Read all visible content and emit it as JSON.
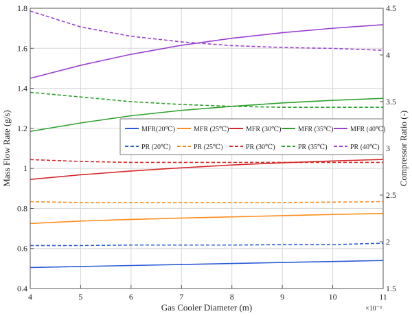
{
  "chart_data": {
    "type": "line",
    "title": "",
    "xlabel": "Gas Cooler Diameter (m)",
    "x_exponent_label": "×10⁻³",
    "ylabel_left": "Mass Flow Rate (g/s)",
    "ylabel_right": "Compressor Ratio (-)",
    "x_ticks": [
      4,
      5,
      6,
      7,
      8,
      9,
      10,
      11
    ],
    "y_left_ticks": [
      "0.4",
      "0.6",
      "0.8",
      "1",
      "1.2",
      "1.4",
      "1.6",
      "1.8"
    ],
    "y_right_ticks": [
      "1.5",
      "2",
      "2.5",
      "3",
      "3.5",
      "4",
      "4.5"
    ],
    "xlim": [
      4,
      11
    ],
    "ylim_left": [
      0.4,
      1.8
    ],
    "ylim_right": [
      1.5,
      4.5
    ],
    "grid": true,
    "legend_position": "center-right",
    "x": [
      4,
      5,
      6,
      7,
      8,
      9,
      10,
      11
    ],
    "series": [
      {
        "name": "MFR(20℃)",
        "axis": "left",
        "style": "solid",
        "color": "#2a5bd7",
        "values": [
          0.505,
          0.51,
          0.515,
          0.52,
          0.525,
          0.53,
          0.535,
          0.54
        ]
      },
      {
        "name": "MFR (25℃)",
        "axis": "left",
        "style": "solid",
        "color": "#ff8c1a",
        "values": [
          0.725,
          0.737,
          0.745,
          0.752,
          0.758,
          0.764,
          0.77,
          0.775
        ]
      },
      {
        "name": "MFR (30℃)",
        "axis": "left",
        "style": "solid",
        "color": "#d62728",
        "values": [
          0.945,
          0.968,
          0.987,
          1.003,
          1.017,
          1.028,
          1.037,
          1.045
        ]
      },
      {
        "name": "MFR (35℃)",
        "axis": "left",
        "style": "solid",
        "color": "#2ca02c",
        "values": [
          1.185,
          1.227,
          1.263,
          1.29,
          1.31,
          1.327,
          1.34,
          1.35
        ]
      },
      {
        "name": "MFR (40℃)",
        "axis": "left",
        "style": "solid",
        "color": "#9b3fcf",
        "values": [
          1.45,
          1.515,
          1.57,
          1.615,
          1.65,
          1.678,
          1.7,
          1.718
        ]
      },
      {
        "name": "PR (20℃)",
        "axis": "right",
        "style": "dashed",
        "color": "#2a5bd7",
        "values": [
          1.96,
          1.96,
          1.965,
          1.965,
          1.965,
          1.97,
          1.97,
          1.985
        ]
      },
      {
        "name": "PR (25℃)",
        "axis": "right",
        "style": "dashed",
        "color": "#ff8c1a",
        "values": [
          2.43,
          2.42,
          2.42,
          2.42,
          2.42,
          2.42,
          2.425,
          2.43
        ]
      },
      {
        "name": "PR (30℃)",
        "axis": "right",
        "style": "dashed",
        "color": "#d62728",
        "values": [
          2.88,
          2.86,
          2.85,
          2.85,
          2.85,
          2.85,
          2.85,
          2.85
        ]
      },
      {
        "name": "PR (35℃)",
        "axis": "right",
        "style": "dashed",
        "color": "#2ca02c",
        "values": [
          3.6,
          3.55,
          3.5,
          3.47,
          3.45,
          3.44,
          3.44,
          3.44
        ]
      },
      {
        "name": "PR (40℃)",
        "axis": "right",
        "style": "dashed",
        "color": "#9b3fcf",
        "values": [
          4.47,
          4.3,
          4.2,
          4.14,
          4.1,
          4.08,
          4.07,
          4.05
        ]
      }
    ]
  }
}
